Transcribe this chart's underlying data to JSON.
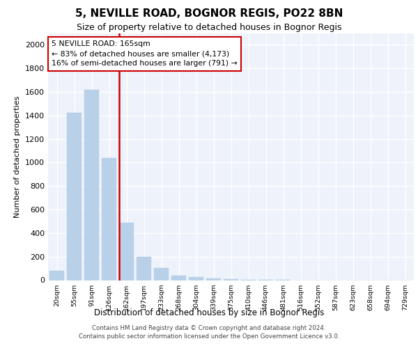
{
  "title_line1": "5, NEVILLE ROAD, BOGNOR REGIS, PO22 8BN",
  "title_line2": "Size of property relative to detached houses in Bognor Regis",
  "xlabel": "Distribution of detached houses by size in Bognor Regis",
  "ylabel": "Number of detached properties",
  "categories": [
    "20sqm",
    "55sqm",
    "91sqm",
    "126sqm",
    "162sqm",
    "197sqm",
    "233sqm",
    "268sqm",
    "304sqm",
    "339sqm",
    "375sqm",
    "410sqm",
    "446sqm",
    "481sqm",
    "516sqm",
    "552sqm",
    "587sqm",
    "623sqm",
    "658sqm",
    "694sqm",
    "729sqm"
  ],
  "values": [
    80,
    1420,
    1620,
    1040,
    490,
    200,
    105,
    40,
    25,
    15,
    10,
    5,
    2,
    1,
    0,
    0,
    0,
    0,
    0,
    0,
    0
  ],
  "bar_color": "#b8d0e8",
  "annotation_text": "5 NEVILLE ROAD: 165sqm\n← 83% of detached houses are smaller (4,173)\n16% of semi-detached houses are larger (791) →",
  "annotation_box_facecolor": "#ffffff",
  "annotation_box_edgecolor": "#cc0000",
  "vline_color": "#cc0000",
  "vline_x_index": 4,
  "ylim": [
    0,
    2100
  ],
  "yticks": [
    0,
    200,
    400,
    600,
    800,
    1000,
    1200,
    1400,
    1600,
    1800,
    2000
  ],
  "plot_bg_color": "#eef2fa",
  "footer_line1": "Contains HM Land Registry data © Crown copyright and database right 2024.",
  "footer_line2": "Contains public sector information licensed under the Open Government Licence v3.0."
}
